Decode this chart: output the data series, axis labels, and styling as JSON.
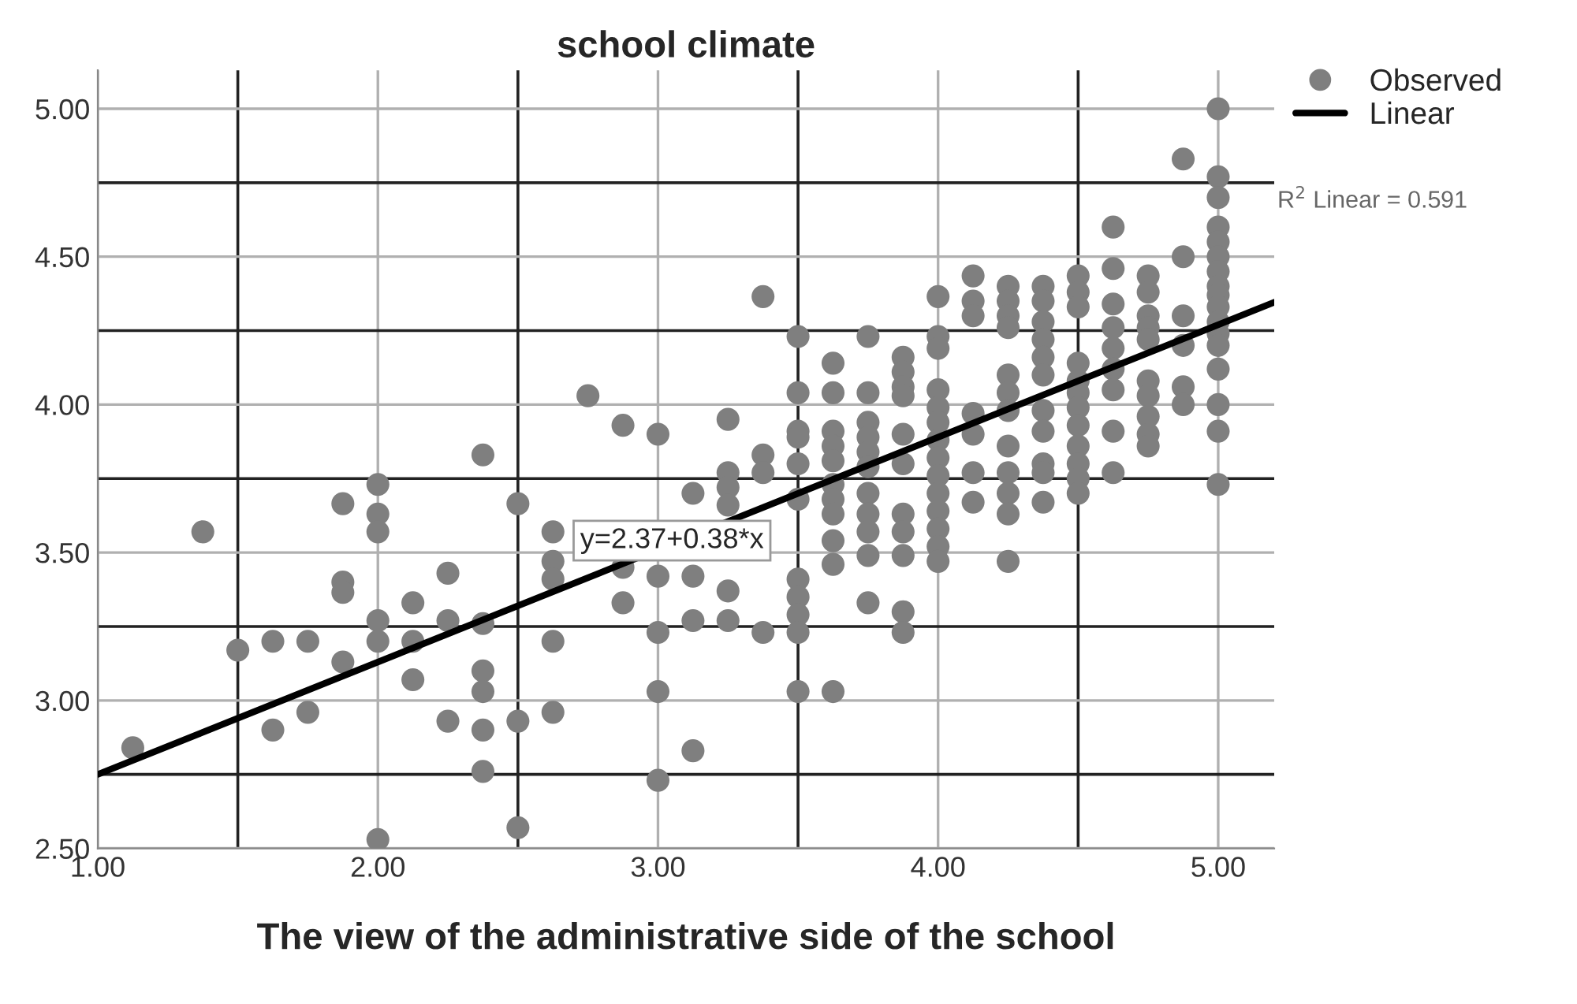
{
  "chart_data": {
    "type": "scatter",
    "title": "school climate",
    "xlabel": "The view of the administrative side of the school",
    "xlim": [
      1,
      5.2
    ],
    "ylim": [
      2.5,
      5.13
    ],
    "xticks": [
      {
        "value": 1,
        "label": "1.00"
      },
      {
        "value": 2,
        "label": "2.00"
      },
      {
        "value": 3,
        "label": "3.00"
      },
      {
        "value": 4,
        "label": "4.00"
      },
      {
        "value": 5,
        "label": "5.00"
      }
    ],
    "yticks": [
      {
        "value": 2.5,
        "label": "2.50"
      },
      {
        "value": 3,
        "label": "3.00"
      },
      {
        "value": 3.5,
        "label": "3.50"
      },
      {
        "value": 4,
        "label": "4.00"
      },
      {
        "value": 4.5,
        "label": "4.50"
      },
      {
        "value": 5,
        "label": "5.00"
      }
    ],
    "grid": true,
    "legend": "top right",
    "annotations": [
      {
        "text": "y=2.37+0.38*x",
        "x": 3.05,
        "y": 3.54
      },
      "R$^{2}$ Linear = 0.591"
    ],
    "series": [
      {
        "name": "Observed",
        "color": "#7f7f7f",
        "marker": "circle",
        "x": [
          1.125,
          1.375,
          1.5,
          1.625,
          1.625,
          1.75,
          1.75,
          1.875,
          1.875,
          1.875,
          1.875,
          2.0,
          2.0,
          2.0,
          2.0,
          2.0,
          2.0,
          2.125,
          2.125,
          2.125,
          2.25,
          2.25,
          2.25,
          2.375,
          2.375,
          2.375,
          2.375,
          2.375,
          2.375,
          2.5,
          2.5,
          2.5,
          2.625,
          2.625,
          2.625,
          2.625,
          2.625,
          2.75,
          2.875,
          2.875,
          2.875,
          3.0,
          3.0,
          3.0,
          3.0,
          3.0,
          3.125,
          3.125,
          3.125,
          3.125,
          3.25,
          3.25,
          3.25,
          3.25,
          3.25,
          3.25,
          3.375,
          3.375,
          3.375,
          3.375,
          3.5,
          3.5,
          3.5,
          3.5,
          3.5,
          3.5,
          3.5,
          3.5,
          3.5,
          3.5,
          3.5,
          3.625,
          3.625,
          3.625,
          3.625,
          3.625,
          3.625,
          3.625,
          3.625,
          3.625,
          3.625,
          3.625,
          3.75,
          3.75,
          3.75,
          3.75,
          3.75,
          3.75,
          3.75,
          3.75,
          3.75,
          3.75,
          3.75,
          3.875,
          3.875,
          3.875,
          3.875,
          3.875,
          3.875,
          3.875,
          3.875,
          3.875,
          3.875,
          3.875,
          4.0,
          4.0,
          4.0,
          4.0,
          4.0,
          4.0,
          4.0,
          4.0,
          4.0,
          4.0,
          4.0,
          4.0,
          4.0,
          4.0,
          4.125,
          4.125,
          4.125,
          4.125,
          4.125,
          4.125,
          4.125,
          4.25,
          4.25,
          4.25,
          4.25,
          4.25,
          4.25,
          4.25,
          4.25,
          4.25,
          4.25,
          4.25,
          4.25,
          4.375,
          4.375,
          4.375,
          4.375,
          4.375,
          4.375,
          4.375,
          4.375,
          4.375,
          4.375,
          4.375,
          4.5,
          4.5,
          4.5,
          4.5,
          4.5,
          4.5,
          4.5,
          4.5,
          4.5,
          4.5,
          4.5,
          4.5,
          4.625,
          4.625,
          4.625,
          4.625,
          4.625,
          4.625,
          4.625,
          4.625,
          4.625,
          4.75,
          4.75,
          4.75,
          4.75,
          4.75,
          4.75,
          4.75,
          4.75,
          4.75,
          4.75,
          4.875,
          4.875,
          4.875,
          4.875,
          4.875,
          4.875,
          5.0,
          5.0,
          5.0,
          5.0,
          5.0,
          5.0,
          5.0,
          5.0,
          5.0,
          5.0,
          5.0,
          5.0,
          5.0,
          5.0,
          5.0,
          5.0,
          5.0
        ],
        "values": [
          2.84,
          3.57,
          3.17,
          3.2,
          2.9,
          3.2,
          2.96,
          3.665,
          3.4,
          3.365,
          3.13,
          3.73,
          3.63,
          3.57,
          3.27,
          3.2,
          2.53,
          3.33,
          3.2,
          3.07,
          3.43,
          3.27,
          2.93,
          3.83,
          3.26,
          3.1,
          3.03,
          2.9,
          2.76,
          3.665,
          2.93,
          2.57,
          3.57,
          3.47,
          3.41,
          3.2,
          2.96,
          4.03,
          3.93,
          3.45,
          3.33,
          3.9,
          3.42,
          3.23,
          3.03,
          2.73,
          3.7,
          3.42,
          3.27,
          2.83,
          3.95,
          3.77,
          3.72,
          3.66,
          3.37,
          3.27,
          4.365,
          3.83,
          3.77,
          3.23,
          4.23,
          4.04,
          3.91,
          3.89,
          3.8,
          3.68,
          3.41,
          3.35,
          3.29,
          3.23,
          3.03,
          4.14,
          4.04,
          3.91,
          3.86,
          3.81,
          3.73,
          3.68,
          3.63,
          3.54,
          3.46,
          3.03,
          4.23,
          4.04,
          3.94,
          3.89,
          3.84,
          3.79,
          3.7,
          3.63,
          3.57,
          3.49,
          3.33,
          4.16,
          4.11,
          4.06,
          4.03,
          3.9,
          3.8,
          3.63,
          3.57,
          3.49,
          3.3,
          3.23,
          4.365,
          4.23,
          4.19,
          4.05,
          3.99,
          3.94,
          3.88,
          3.82,
          3.76,
          3.7,
          3.64,
          3.58,
          3.52,
          3.47,
          4.435,
          4.35,
          4.3,
          3.97,
          3.9,
          3.77,
          3.67,
          4.4,
          4.35,
          4.3,
          4.26,
          4.1,
          4.04,
          3.98,
          3.86,
          3.77,
          3.7,
          3.63,
          3.47,
          4.4,
          4.35,
          4.28,
          4.22,
          4.16,
          4.1,
          3.98,
          3.91,
          3.8,
          3.77,
          3.67,
          4.435,
          4.38,
          4.33,
          4.14,
          4.08,
          4.04,
          3.99,
          3.93,
          3.86,
          3.8,
          3.75,
          3.7,
          4.6,
          4.46,
          4.34,
          4.26,
          4.19,
          4.12,
          4.05,
          3.91,
          3.77,
          4.435,
          4.38,
          4.3,
          4.26,
          4.22,
          4.08,
          4.03,
          3.96,
          3.9,
          3.86,
          4.83,
          4.5,
          4.3,
          4.2,
          4.06,
          4.0,
          5.0,
          4.77,
          4.7,
          4.6,
          4.55,
          4.5,
          4.45,
          4.4,
          4.37,
          4.33,
          4.28,
          4.24,
          4.2,
          4.12,
          4.0,
          3.91,
          3.73
        ]
      },
      {
        "name": "Linear",
        "type": "line",
        "color": "#000000",
        "x": [
          1,
          5.2
        ],
        "values": [
          2.75,
          4.346
        ]
      }
    ]
  }
}
